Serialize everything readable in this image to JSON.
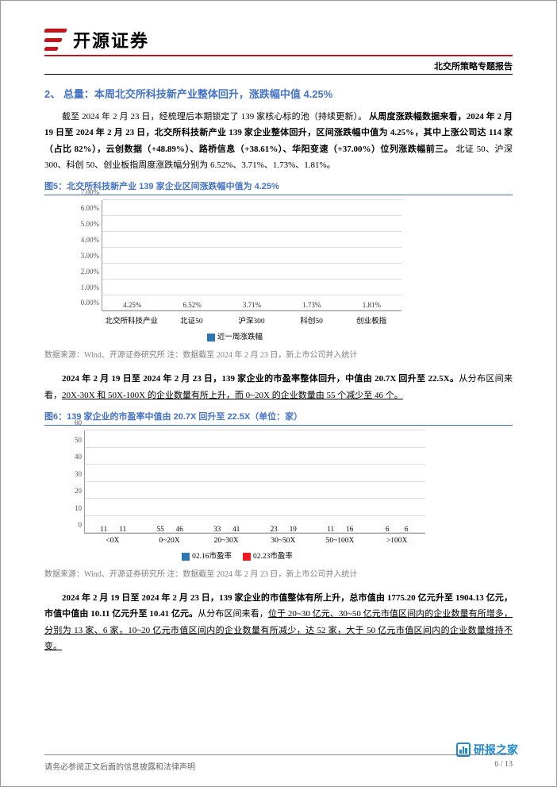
{
  "header": {
    "brand": "开源证券",
    "subtitle": "北交所策略专题报告"
  },
  "section2": {
    "title": "2、 总量：本周北交所科技新产业整体回升，涨跌幅中值 4.25%",
    "para1_plain": "截至 2024 年 2 月 23 日，经梳理后本期锁定了 139 家核心标的池（持续更新）。",
    "para1_bold": "从周度涨跌幅数据来看，2024 年 2 月 19 日至 2024 年 2 月 23 日，北交所科技新产业 139 家企业整体回升，区间涨跌幅中值为 4.25%，其中上涨公司达 114 家（占比 82%），云创数据（+48.89%）、路桥信息（+38.61%）、华阳变速（+37.00%）位列涨跌幅前三。",
    "para1_tail": "北证 50、沪深 300、科创 50、创业板指周度涨跌幅分别为 6.52%、3.71%、1.73%、1.81%。"
  },
  "fig5": {
    "title": "图5：北交所科技新产业 139 家企业区间涨跌幅中值为 4.25%",
    "type": "bar",
    "categories": [
      "北交所科技产业",
      "北证50",
      "沪深300",
      "科创50",
      "创业板指"
    ],
    "values": [
      4.25,
      6.52,
      3.71,
      1.73,
      1.81
    ],
    "value_labels": [
      "4.25%",
      "6.52%",
      "3.71%",
      "1.73%",
      "1.81%"
    ],
    "bar_color": "#2e75b6",
    "legend_label": "近一周涨跌幅",
    "ylim": [
      0,
      7
    ],
    "yticks": [
      "0.00%",
      "1.00%",
      "2.00%",
      "3.00%",
      "4.00%",
      "5.00%",
      "6.00%",
      "7.00%"
    ],
    "grid_color": "#dddddd",
    "source": "数据来源：Wind、开源证券研究所   注：数据截至 2024 年 2 月 23 日，新上市公司并入统计"
  },
  "para_mid": {
    "bold": "2024 年 2 月 19 日至 2024 年 2 月 23 日，139 家企业的市盈率整体回升，中值由 20.7X 回升至 22.5X。",
    "plain1": "从分布区间来看，",
    "underline": "20X-30X 和 50X-100X 的企业数量有所上升，而 0~20X 的企业数量由 55 个减少至 46 个。"
  },
  "fig6": {
    "title": "图6：139 家企业的市盈率中值由 20.7X 回升至 22.5X（单位：家）",
    "type": "grouped_bar",
    "categories": [
      "<0X",
      "0~20X",
      "20~30X",
      "30~50X",
      "50~100X",
      ">100X"
    ],
    "series": [
      {
        "name": "02.16市盈率",
        "color": "#2e75b6",
        "values": [
          11,
          55,
          33,
          23,
          11,
          6
        ]
      },
      {
        "name": "02.23市盈率",
        "color": "#ed1c24",
        "values": [
          11,
          46,
          41,
          19,
          16,
          6
        ]
      }
    ],
    "ylim": [
      0,
      60
    ],
    "yticks": [
      0,
      10,
      20,
      30,
      40,
      50,
      60
    ],
    "grid_color": "#dddddd",
    "source": "数据来源：Wind、开源证券研究所   注：数据截至 2024 年 2 月 23 日，新上市公司并入统计"
  },
  "para_bottom": {
    "bold": "2024 年 2 月 19 日至 2024 年 2 月 23 日，139 家企业的市值整体有所上升，总市值由 1775.20 亿元升至 1904.13 亿元，市值中值由 10.11 亿元升至 10.41 亿元。",
    "plain1": "从分布区间来看，",
    "underline": "位于 20~30 亿元、30~50 亿元市值区间内的企业数量有所增多，分别为 13 家、6 家，10~20 亿元市值区间内的企业数量有所减少，达 52 家，大于 50 亿元市值区间内的企业数量维持不变。"
  },
  "footer": {
    "left": "请务必参阅正文后面的信息披露和法律声明",
    "right": "6 / 13",
    "wm": "研报之家"
  }
}
